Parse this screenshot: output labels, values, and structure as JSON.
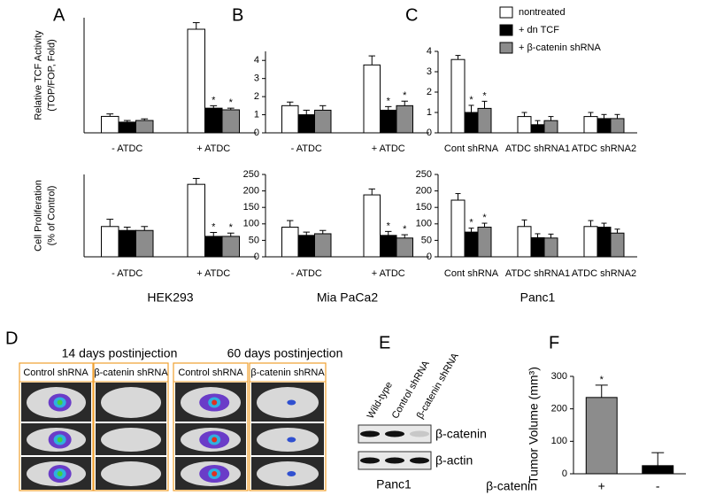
{
  "chart_data": [
    {
      "type": "bar",
      "panel": "A",
      "ylabel": [
        "Relative TCF Activity",
        "(TOP/FOP, Fold)"
      ],
      "categories": [
        "- ATDC",
        "+ ATDC"
      ],
      "ylim": [
        0,
        7
      ],
      "series": [
        {
          "color": "#ffffff",
          "values": [
            1.0,
            6.3
          ],
          "errors": [
            0.15,
            0.4
          ],
          "annotations": [
            null,
            null
          ]
        },
        {
          "color": "#000000",
          "values": [
            0.65,
            1.5
          ],
          "errors": [
            0.1,
            0.15
          ],
          "annotations": [
            null,
            "*"
          ]
        },
        {
          "color": "#8c8c8c",
          "values": [
            0.75,
            1.4
          ],
          "errors": [
            0.1,
            0.1
          ],
          "annotations": [
            null,
            "*"
          ]
        }
      ]
    },
    {
      "type": "bar",
      "panel": "B",
      "categories": [
        "- ATDC",
        "+ ATDC"
      ],
      "ylim": [
        0,
        4.5
      ],
      "yticks": [
        0,
        1,
        2,
        3,
        4
      ],
      "series": [
        {
          "color": "#ffffff",
          "values": [
            1.5,
            3.75
          ],
          "errors": [
            0.2,
            0.5
          ],
          "annotations": [
            null,
            null
          ]
        },
        {
          "color": "#000000",
          "values": [
            1.0,
            1.25
          ],
          "errors": [
            0.25,
            0.2
          ],
          "annotations": [
            null,
            "*"
          ]
        },
        {
          "color": "#8c8c8c",
          "values": [
            1.25,
            1.5
          ],
          "errors": [
            0.25,
            0.25
          ],
          "annotations": [
            null,
            "*"
          ]
        }
      ]
    },
    {
      "type": "bar",
      "panel": "C",
      "categories": [
        "Cont shRNA",
        "ATDC shRNA1",
        "ATDC shRNA2"
      ],
      "ylim": [
        0,
        4
      ],
      "yticks": [
        0,
        1,
        2,
        3,
        4
      ],
      "series": [
        {
          "name": "nontreated",
          "color": "#ffffff",
          "values": [
            3.6,
            0.8,
            0.8
          ],
          "errors": [
            0.2,
            0.2,
            0.2
          ],
          "annotations": [
            null,
            null,
            null
          ]
        },
        {
          "name": "+ dn TCF",
          "color": "#000000",
          "values": [
            1.0,
            0.4,
            0.7
          ],
          "errors": [
            0.35,
            0.2,
            0.2
          ],
          "annotations": [
            "*",
            null,
            null
          ]
        },
        {
          "name": "+ β-catenin shRNA",
          "color": "#8c8c8c",
          "values": [
            1.2,
            0.6,
            0.7
          ],
          "errors": [
            0.35,
            0.2,
            0.2
          ],
          "annotations": [
            "*",
            null,
            null
          ]
        }
      ]
    },
    {
      "type": "bar",
      "ylabel": [
        "Cell Proliferation",
        "(% of Control)"
      ],
      "categories": [
        "- ATDC",
        "+ ATDC"
      ],
      "xlabel": "HEK293",
      "ylim": [
        0,
        250
      ],
      "series": [
        {
          "color": "#ffffff",
          "values": [
            92,
            220
          ],
          "errors": [
            22,
            18
          ],
          "annotations": [
            null,
            null
          ]
        },
        {
          "color": "#000000",
          "values": [
            80,
            62
          ],
          "errors": [
            10,
            12
          ],
          "annotations": [
            null,
            "*"
          ]
        },
        {
          "color": "#8c8c8c",
          "values": [
            80,
            62
          ],
          "errors": [
            12,
            10
          ],
          "annotations": [
            null,
            "*"
          ]
        }
      ]
    },
    {
      "type": "bar",
      "categories": [
        "- ATDC",
        "+ ATDC"
      ],
      "xlabel": "Mia PaCa2",
      "ylim": [
        0,
        250
      ],
      "yticks": [
        0,
        50,
        100,
        150,
        200,
        250
      ],
      "series": [
        {
          "color": "#ffffff",
          "values": [
            90,
            188
          ],
          "errors": [
            20,
            18
          ],
          "annotations": [
            null,
            null
          ]
        },
        {
          "color": "#000000",
          "values": [
            65,
            65
          ],
          "errors": [
            10,
            12
          ],
          "annotations": [
            null,
            "*"
          ]
        },
        {
          "color": "#8c8c8c",
          "values": [
            70,
            57
          ],
          "errors": [
            10,
            10
          ],
          "annotations": [
            null,
            "*"
          ]
        }
      ]
    },
    {
      "type": "bar",
      "categories": [
        "Cont shRNA",
        "ATDC shRNA1",
        "ATDC shRNA2"
      ],
      "xlabel": "Panc1",
      "ylim": [
        0,
        250
      ],
      "yticks": [
        0,
        50,
        100,
        150,
        200,
        250
      ],
      "series": [
        {
          "color": "#ffffff",
          "values": [
            172,
            92,
            92
          ],
          "errors": [
            20,
            20,
            18
          ],
          "annotations": [
            null,
            null,
            null
          ]
        },
        {
          "color": "#000000",
          "values": [
            75,
            58,
            90
          ],
          "errors": [
            12,
            12,
            12
          ],
          "annotations": [
            "*",
            null,
            null
          ]
        },
        {
          "color": "#8c8c8c",
          "values": [
            90,
            57,
            72
          ],
          "errors": [
            12,
            12,
            12
          ],
          "annotations": [
            "*",
            null,
            null
          ]
        }
      ]
    },
    {
      "type": "bar",
      "panel": "F",
      "ylabel": [
        "Tumor Volume (mm³)"
      ],
      "xlabel": "β-catenin",
      "categories": [
        "+",
        "-"
      ],
      "ylim": [
        0,
        300
      ],
      "yticks": [
        0,
        100,
        200,
        300
      ],
      "series": [
        {
          "colors": [
            "#8c8c8c",
            "#000000"
          ],
          "values": [
            235,
            25
          ],
          "errors": [
            38,
            40
          ],
          "annotations": [
            "*",
            null
          ]
        }
      ]
    }
  ],
  "panels": {
    "D": {
      "letter": "D",
      "groups": [
        {
          "title": "14 days postinjection",
          "columns": [
            "Control shRNA",
            "β-catenin shRNA"
          ]
        },
        {
          "title": "60 days postinjection",
          "columns": [
            "Control shRNA",
            "β-catenin shRNA"
          ]
        }
      ]
    },
    "E": {
      "letter": "E",
      "lanes": [
        "Wild-type",
        "Control shRNA",
        "β-catenin shRNA"
      ],
      "bands": [
        "β-catenin",
        "β-actin"
      ],
      "cell_line": "Panc1"
    }
  }
}
